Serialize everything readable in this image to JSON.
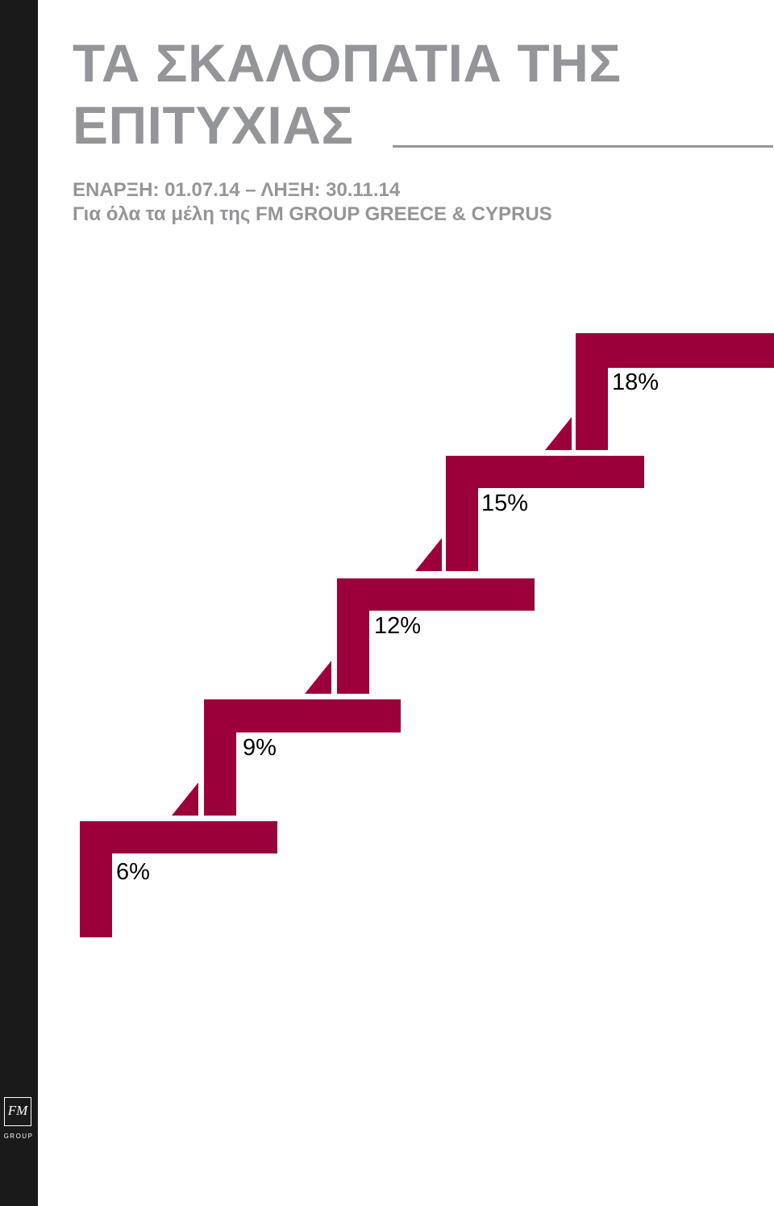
{
  "title": {
    "line1": "ΤΑ ΣΚΑΛΟΠΑΤΙΑ ΤΗΣ",
    "line2": "ΕΠΙΤΥΧΙΑΣ"
  },
  "subtitle": {
    "dates": "ΕΝΑΡΞΗ: 01.07.14 – ΛΗΞΗ: 30.11.14",
    "audience": "Για όλα τα μέλη της FM GROUP GREECE & CYPRUS"
  },
  "steps": [
    {
      "label": "6%"
    },
    {
      "label": "9%"
    },
    {
      "label": "12%"
    },
    {
      "label": "15%"
    },
    {
      "label": "18%"
    }
  ],
  "colors": {
    "stair": "#9b003a",
    "title": "#939598",
    "sidebar": "#1a1a1a"
  },
  "logo": {
    "mark": "FM",
    "text": "GROUP"
  }
}
